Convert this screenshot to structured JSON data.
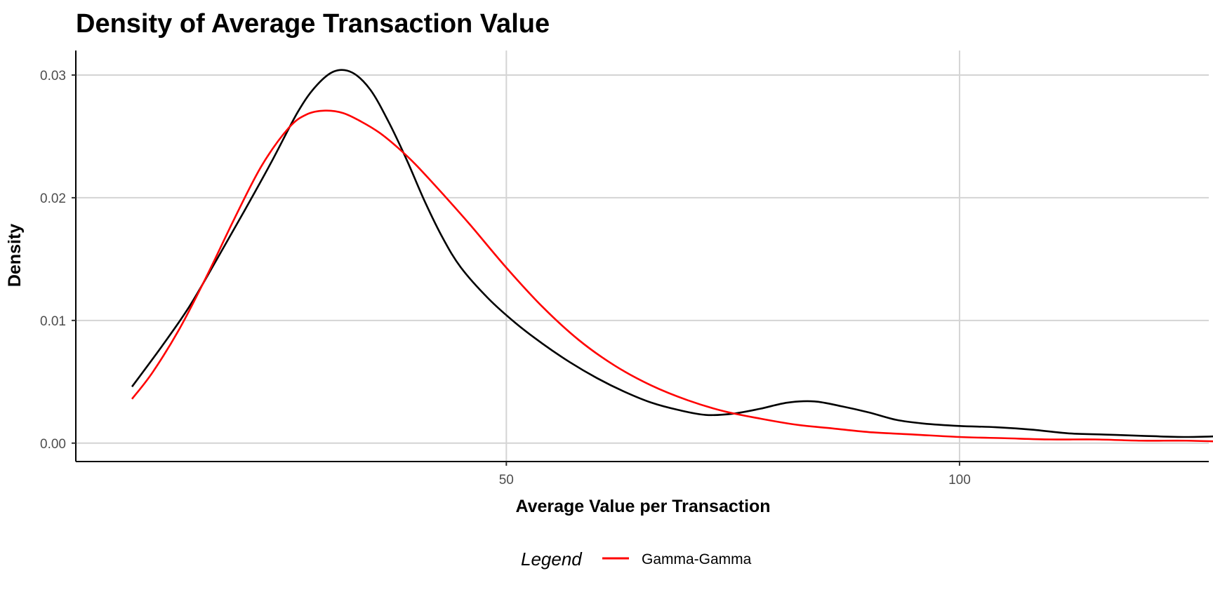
{
  "chart_data": {
    "type": "line",
    "title": "Density of Average Transaction Value",
    "xlabel": "Average Value per Transaction",
    "ylabel": "Density",
    "xlim": [
      2.5,
      127.5
    ],
    "ylim": [
      -0.0015,
      0.032
    ],
    "x_ticks": [
      50,
      100
    ],
    "y_ticks": [
      0.0,
      0.01,
      0.02,
      0.03
    ],
    "x_tick_labels": [
      "50",
      "100"
    ],
    "y_tick_labels": [
      "0.00",
      "0.01",
      "0.02",
      "0.03"
    ],
    "grid": true,
    "legend": {
      "title": "Legend",
      "position": "bottom",
      "entries": [
        {
          "label": "Gamma-Gamma",
          "color": "#ff0000"
        }
      ]
    },
    "series": [
      {
        "color": "#000000",
        "x": [
          8.7,
          12,
          15,
          18,
          21,
          24,
          27,
          29,
          31,
          33,
          35,
          37,
          39,
          41,
          43,
          45,
          48,
          51,
          54,
          57,
          60,
          63,
          66,
          69,
          72,
          75,
          78,
          81,
          84,
          87,
          90,
          93,
          96,
          100,
          104,
          108,
          112,
          116,
          120,
          125,
          130
        ],
        "y": [
          0.0046,
          0.0079,
          0.0111,
          0.0149,
          0.0188,
          0.0228,
          0.027,
          0.0291,
          0.0303,
          0.0302,
          0.0288,
          0.0262,
          0.0231,
          0.0197,
          0.0167,
          0.0143,
          0.0118,
          0.0098,
          0.0081,
          0.0066,
          0.0053,
          0.0042,
          0.0033,
          0.0027,
          0.0023,
          0.0024,
          0.0028,
          0.0033,
          0.0034,
          0.003,
          0.0025,
          0.0019,
          0.0016,
          0.0014,
          0.0013,
          0.0011,
          0.0008,
          0.0007,
          0.0006,
          0.0005,
          0.0006
        ]
      },
      {
        "name": "Gamma-Gamma",
        "color": "#ff0000",
        "x": [
          8.7,
          11,
          14,
          17,
          20,
          23,
          26,
          28,
          30,
          32,
          34,
          36,
          38,
          40,
          43,
          46,
          50,
          54,
          58,
          62,
          66,
          70,
          74,
          78,
          82,
          86,
          90,
          95,
          100,
          105,
          110,
          115,
          120,
          125,
          130
        ],
        "y": [
          0.0036,
          0.0058,
          0.0094,
          0.0137,
          0.0183,
          0.0226,
          0.0257,
          0.0268,
          0.0271,
          0.0269,
          0.0262,
          0.0253,
          0.0241,
          0.0227,
          0.0203,
          0.0178,
          0.0143,
          0.0111,
          0.0084,
          0.0063,
          0.0047,
          0.0035,
          0.0026,
          0.002,
          0.0015,
          0.0012,
          0.0009,
          0.0007,
          0.0005,
          0.0004,
          0.0003,
          0.0003,
          0.0002,
          0.0002,
          0.0001
        ]
      }
    ]
  }
}
